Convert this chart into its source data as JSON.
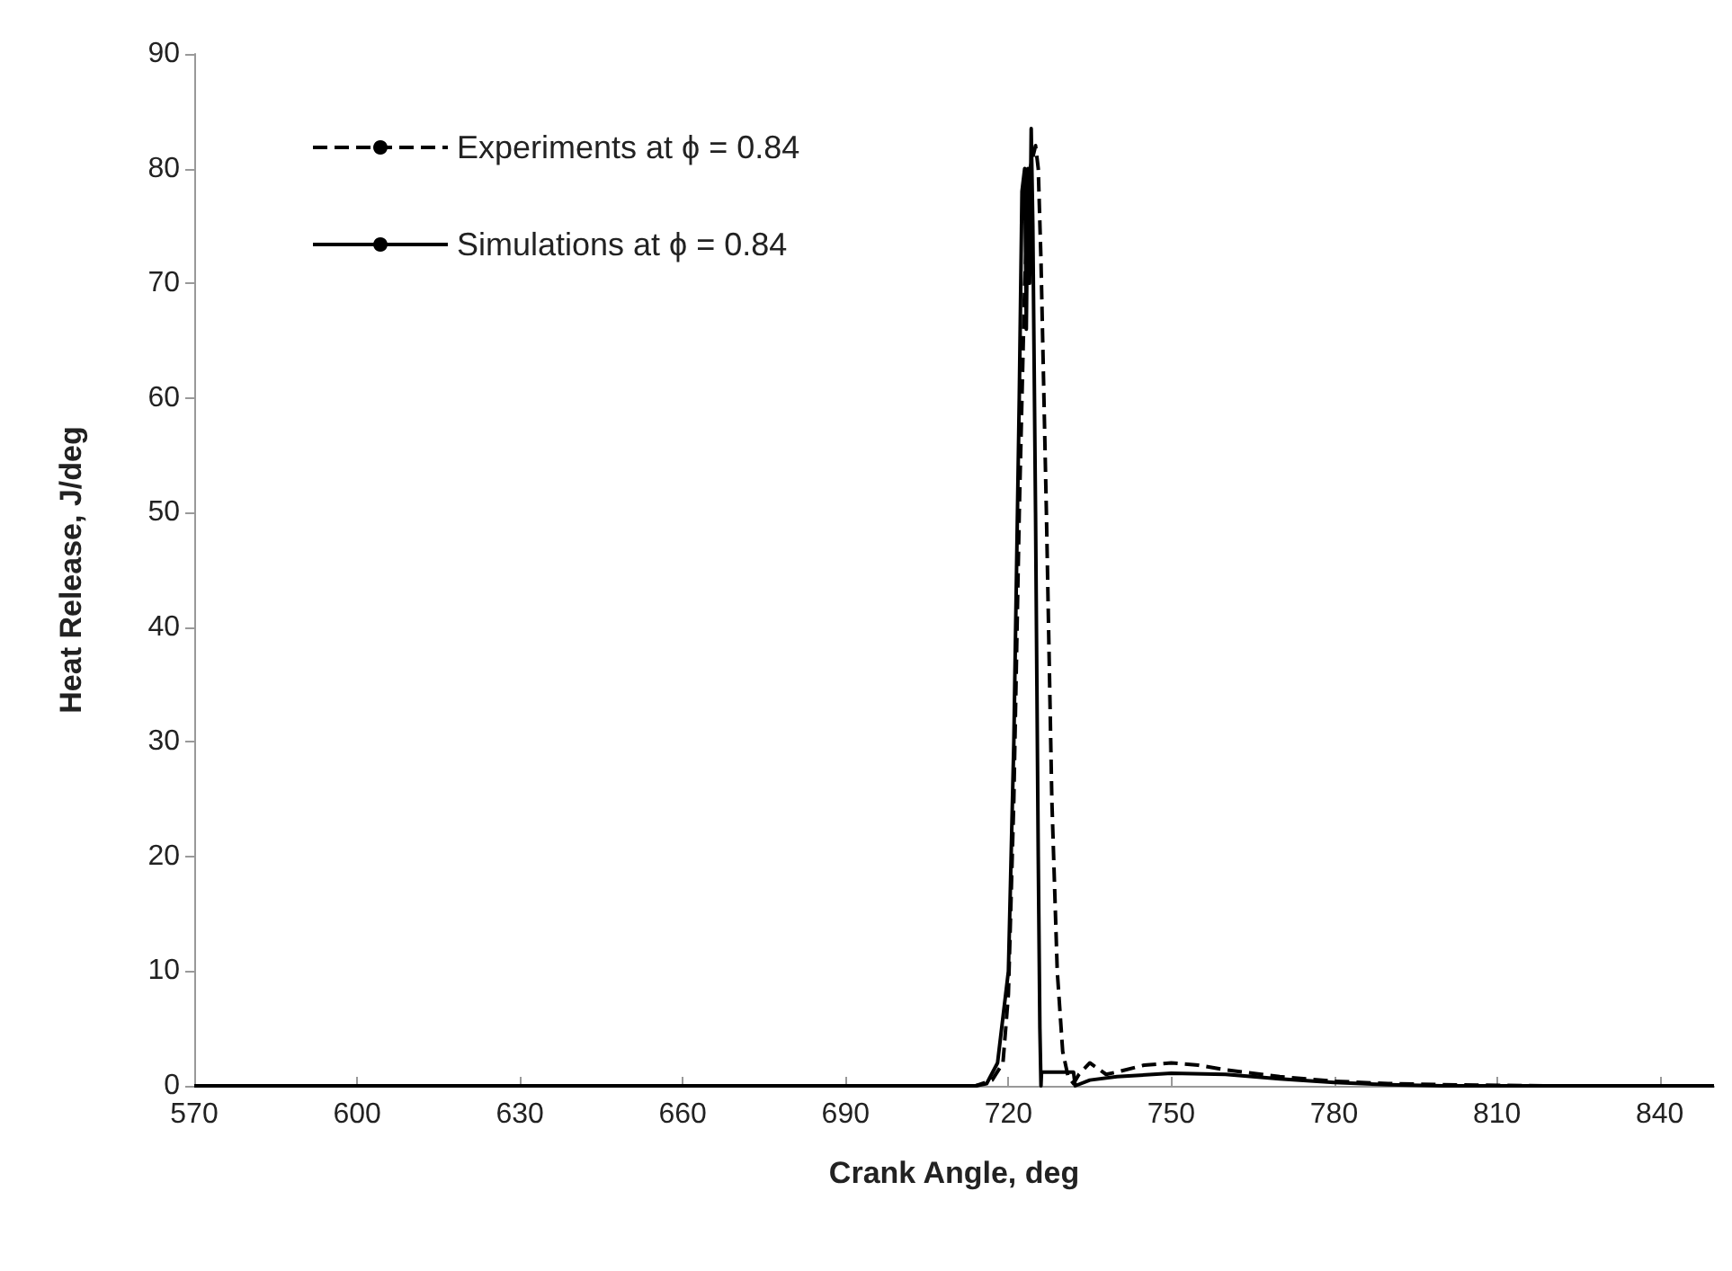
{
  "chart_data": {
    "type": "line",
    "xlabel": "Crank Angle, deg",
    "ylabel": "Heat Release, J/deg",
    "xlim": [
      570,
      850
    ],
    "xticks": [
      570,
      600,
      630,
      660,
      690,
      720,
      750,
      780,
      810,
      840
    ],
    "ylim": [
      0,
      90
    ],
    "yticks": [
      0,
      10,
      20,
      30,
      40,
      50,
      60,
      70,
      80,
      90
    ],
    "grid": false,
    "legend": "top left",
    "marker": "none",
    "series": [
      {
        "name": "Experiments at ϕ = 0.84",
        "color": "#000000",
        "line_style": "dashed",
        "x": [
          570,
          700,
          714,
          717,
          719,
          720,
          721,
          722,
          723,
          724,
          724.5,
          725,
          725.5,
          726,
          727,
          728,
          729,
          730,
          731,
          732,
          733,
          735,
          736.5,
          738,
          740,
          745,
          750,
          755,
          760,
          770,
          780,
          790,
          800,
          820,
          850
        ],
        "values": [
          0,
          0,
          0,
          0.5,
          2,
          8,
          25,
          50,
          70,
          80,
          81,
          82,
          80,
          72,
          50,
          25,
          10,
          3,
          0.8,
          0.2,
          1,
          2,
          1.5,
          1,
          1.2,
          1.8,
          2,
          1.8,
          1.4,
          0.8,
          0.4,
          0.2,
          0.1,
          0,
          0
        ]
      },
      {
        "name": "Simulations at ϕ = 0.84",
        "color": "#000000",
        "line_style": "solid",
        "x": [
          570,
          700,
          714,
          716,
          718,
          720,
          721,
          722,
          722.5,
          723,
          723.3,
          723.6,
          723.9,
          724.2,
          724.5,
          725,
          725.5,
          725.8,
          726,
          726.1,
          732,
          732.3,
          735,
          740,
          750,
          760,
          770,
          780,
          790,
          800,
          850
        ],
        "values": [
          0,
          0,
          0,
          0.2,
          2,
          10,
          30,
          60,
          78,
          80,
          66,
          80,
          70,
          83.5,
          75,
          50,
          20,
          5,
          0,
          1.2,
          1.2,
          0,
          0.5,
          0.8,
          1.1,
          1,
          0.6,
          0.3,
          0.1,
          0,
          0
        ]
      }
    ]
  }
}
